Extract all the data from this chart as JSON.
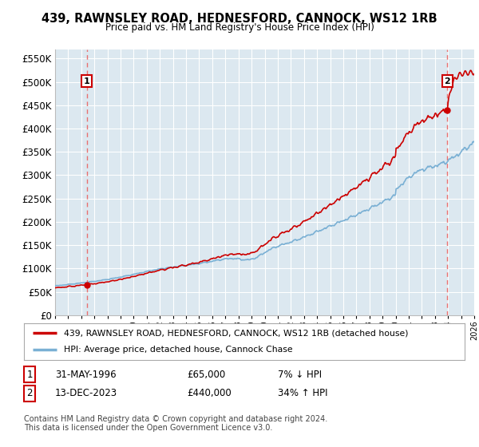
{
  "title": "439, RAWNSLEY ROAD, HEDNESFORD, CANNOCK, WS12 1RB",
  "subtitle": "Price paid vs. HM Land Registry's House Price Index (HPI)",
  "ylabel_ticks": [
    "£0",
    "£50K",
    "£100K",
    "£150K",
    "£200K",
    "£250K",
    "£300K",
    "£350K",
    "£400K",
    "£450K",
    "£500K",
    "£550K"
  ],
  "ytick_values": [
    0,
    50000,
    100000,
    150000,
    200000,
    250000,
    300000,
    350000,
    400000,
    450000,
    500000,
    550000
  ],
  "ylim": [
    0,
    570000
  ],
  "x_start_year": 1994,
  "x_end_year": 2026,
  "hpi_color": "#7ab0d4",
  "price_color": "#cc0000",
  "point1_year": 1996.42,
  "point1_value": 65000,
  "point2_year": 2023.95,
  "point2_value": 440000,
  "legend_label1": "439, RAWNSLEY ROAD, HEDNESFORD, CANNOCK, WS12 1RB (detached house)",
  "legend_label2": "HPI: Average price, detached house, Cannock Chase",
  "table_row1": [
    "1",
    "31-MAY-1996",
    "£65,000",
    "7% ↓ HPI"
  ],
  "table_row2": [
    "2",
    "13-DEC-2023",
    "£440,000",
    "34% ↑ HPI"
  ],
  "footnote": "Contains HM Land Registry data © Crown copyright and database right 2024.\nThis data is licensed under the Open Government Licence v3.0.",
  "bg_color": "#ffffff",
  "plot_bg_color": "#dce8f0",
  "grid_color": "#ffffff",
  "dashed_line_color": "#e87070"
}
